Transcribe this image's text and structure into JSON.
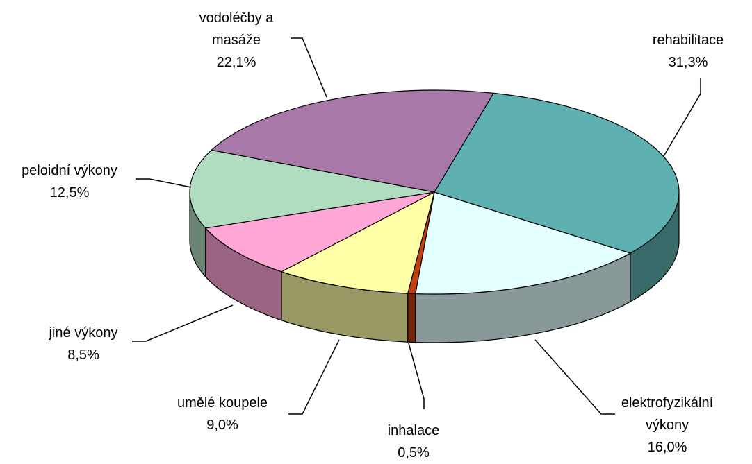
{
  "chart_data": {
    "type": "pie3d",
    "categories": [
      "rehabilitace",
      "elektrofyzikální výkony",
      "inhalace",
      "umělé koupele",
      "jiné výkony",
      "peloidní výkony",
      "vodoléčby a masáže"
    ],
    "values": [
      31.3,
      16.0,
      0.5,
      9.0,
      8.5,
      12.5,
      22.1
    ],
    "value_labels": [
      "31,3%",
      "16,0%",
      "0,5%",
      "9,0%",
      "8,5%",
      "12,5%",
      "22,1%"
    ],
    "colors": [
      "#5fb0b0",
      "#e4ffff",
      "#c04010",
      "#ffffa8",
      "#ffa8d8",
      "#b0dcc0",
      "#a878a8"
    ]
  }
}
